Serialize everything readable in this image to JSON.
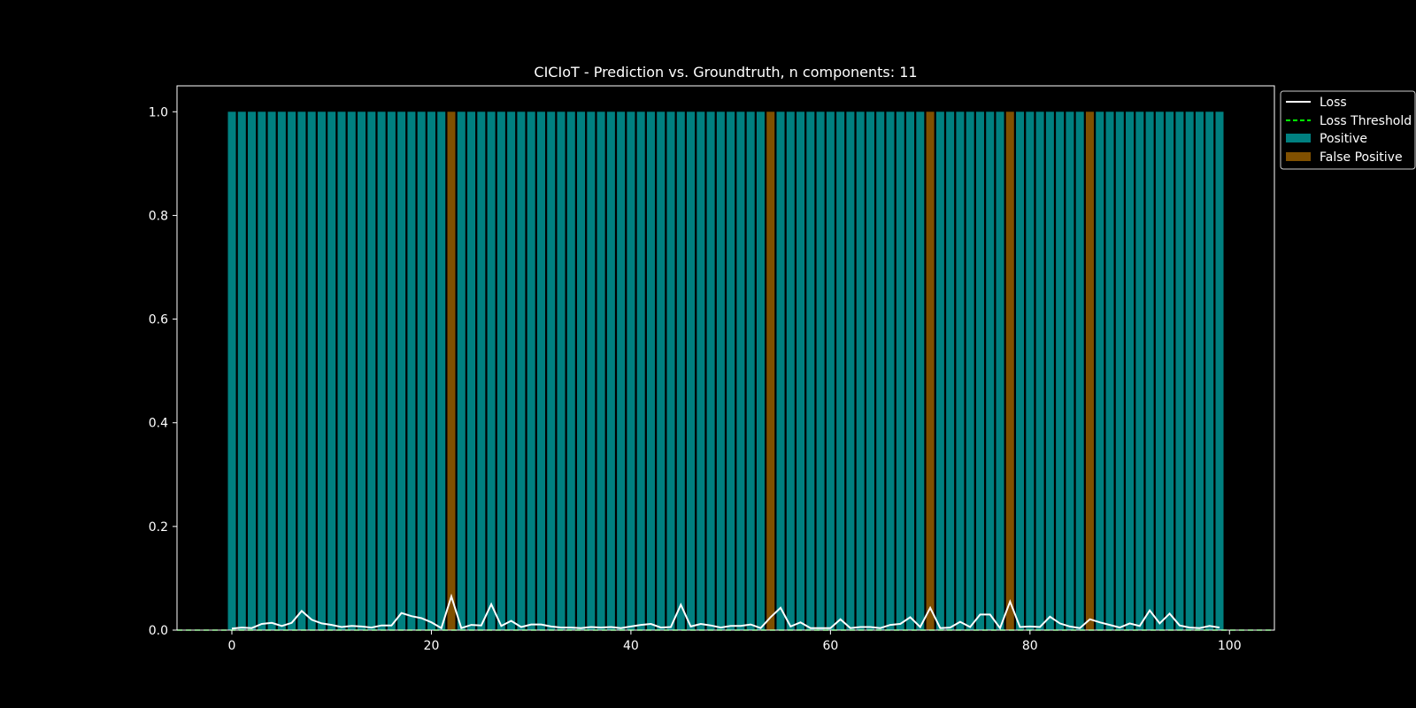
{
  "chart_data": {
    "type": "bar",
    "title": "CICIoT - Prediction vs. Groundtruth, n components: 11",
    "xlabel": "",
    "ylabel": "",
    "xlim": [
      -5.5,
      104.5
    ],
    "ylim": [
      0,
      1.05
    ],
    "xticks": [
      0,
      20,
      40,
      60,
      80,
      100
    ],
    "yticks": [
      0.0,
      0.2,
      0.4,
      0.6,
      0.8,
      1.0
    ],
    "grid": false,
    "legend_position": "outside top-right",
    "colors": {
      "background": "#000000",
      "positive": "#008080",
      "false_positive": "#805000",
      "loss": "#ffffff",
      "threshold": "#00ff00"
    },
    "bars": {
      "x_start": 0,
      "height": 1.0,
      "count": 100,
      "false_positive_indices": [
        22,
        54,
        70,
        78,
        86
      ]
    },
    "series": [
      {
        "name": "Loss",
        "style": "solid",
        "x_start": 0,
        "values": [
          0.003,
          0.005,
          0.004,
          0.012,
          0.014,
          0.008,
          0.014,
          0.037,
          0.02,
          0.013,
          0.01,
          0.006,
          0.008,
          0.007,
          0.005,
          0.009,
          0.009,
          0.033,
          0.027,
          0.023,
          0.015,
          0.004,
          0.065,
          0.004,
          0.01,
          0.009,
          0.05,
          0.008,
          0.018,
          0.006,
          0.011,
          0.011,
          0.007,
          0.005,
          0.005,
          0.004,
          0.006,
          0.005,
          0.006,
          0.004,
          0.007,
          0.01,
          0.012,
          0.005,
          0.006,
          0.049,
          0.007,
          0.012,
          0.009,
          0.005,
          0.008,
          0.008,
          0.011,
          0.004,
          0.025,
          0.043,
          0.007,
          0.015,
          0.004,
          0.004,
          0.004,
          0.021,
          0.004,
          0.006,
          0.006,
          0.004,
          0.01,
          0.012,
          0.025,
          0.006,
          0.043,
          0.004,
          0.005,
          0.016,
          0.006,
          0.03,
          0.03,
          0.004,
          0.055,
          0.006,
          0.007,
          0.006,
          0.026,
          0.013,
          0.007,
          0.004,
          0.021,
          0.015,
          0.01,
          0.005,
          0.013,
          0.008,
          0.038,
          0.013,
          0.032,
          0.009,
          0.005,
          0.004,
          0.008,
          0.005
        ]
      },
      {
        "name": "Loss Threshold",
        "style": "dashed",
        "values": [
          0.0,
          0.0
        ]
      }
    ],
    "legend": {
      "loss": "Loss",
      "threshold": "Loss Threshold",
      "positive": "Positive",
      "false_positive": "False Positive"
    }
  }
}
